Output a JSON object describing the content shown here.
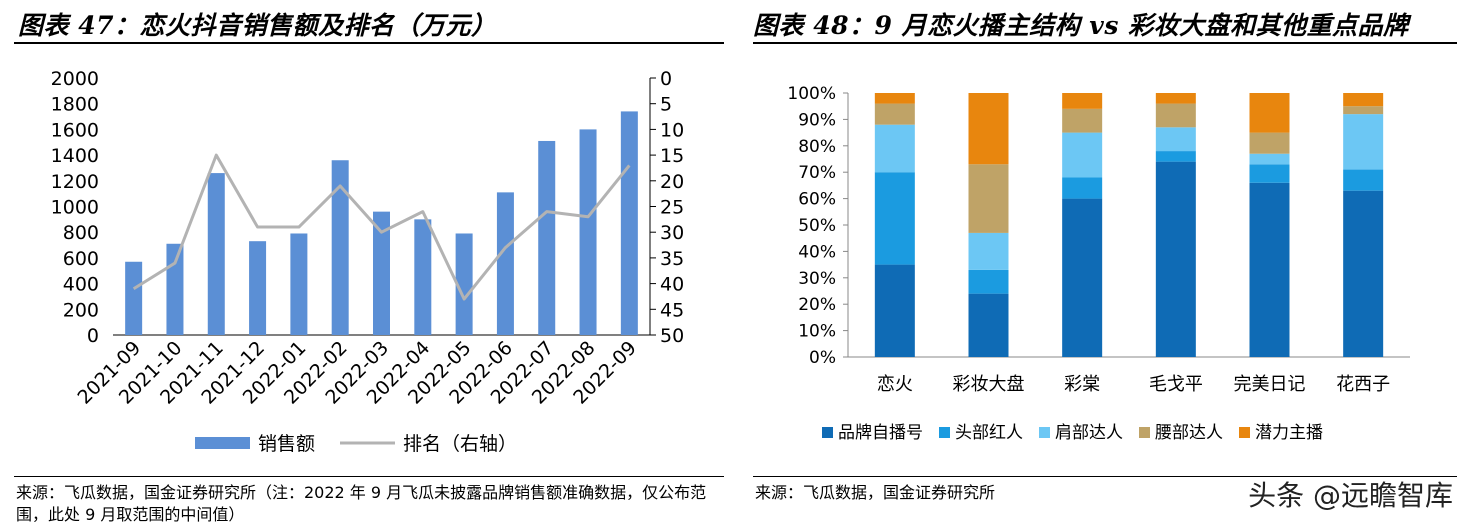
{
  "left": {
    "title": "图表 47：恋火抖音销售额及排名（万元）",
    "source": "来源：飞瓜数据，国金证券研究所（注：2022 年 9 月飞瓜未披露品牌销售额准确数据，仅公布范围，此处 9 月取范围的中间值）",
    "chart_data": {
      "type": "bar",
      "categories": [
        "2021-09",
        "2021-10",
        "2021-11",
        "2021-12",
        "2022-01",
        "2022-02",
        "2022-03",
        "2022-04",
        "2022-05",
        "2022-06",
        "2022-07",
        "2022-08",
        "2022-09"
      ],
      "series": [
        {
          "name": "销售额",
          "type": "bar",
          "axis": "left",
          "values": [
            570,
            710,
            1260,
            730,
            790,
            1360,
            960,
            900,
            790,
            1110,
            1510,
            1600,
            1740
          ]
        },
        {
          "name": "排名（右轴）",
          "type": "line",
          "axis": "right",
          "values": [
            41,
            36,
            15,
            29,
            29,
            21,
            30,
            26,
            43,
            33,
            26,
            27,
            17
          ]
        }
      ],
      "ylim": [
        0,
        2000
      ],
      "yticks": [
        0,
        200,
        400,
        600,
        800,
        1000,
        1200,
        1400,
        1600,
        1800,
        2000
      ],
      "y2lim": [
        0,
        50
      ],
      "y2_reversed": true,
      "y2ticks": [
        0,
        5,
        10,
        15,
        20,
        25,
        30,
        35,
        40,
        45,
        50
      ],
      "legend_position": "bottom",
      "colors": {
        "bar": "#5b8fd5",
        "line": "#b3b3b3"
      }
    }
  },
  "right": {
    "title": "图表 48：9 月恋火播主结构 vs 彩妆大盘和其他重点品牌",
    "source": "来源：飞瓜数据，国金证券研究所",
    "chart_data": {
      "type": "bar",
      "stacked": true,
      "categories": [
        "恋火",
        "彩妆大盘",
        "彩棠",
        "毛戈平",
        "完美日记",
        "花西子"
      ],
      "series": [
        {
          "name": "品牌自播号",
          "color": "#0f6bb5",
          "values": [
            35,
            24,
            60,
            74,
            66,
            63
          ]
        },
        {
          "name": "头部红人",
          "color": "#1b9be0",
          "values": [
            35,
            9,
            8,
            4,
            7,
            8
          ]
        },
        {
          "name": "肩部达人",
          "color": "#6cc7f4",
          "values": [
            18,
            14,
            17,
            9,
            4,
            21
          ]
        },
        {
          "name": "腰部达人",
          "color": "#bfa367",
          "values": [
            8,
            26,
            9,
            9,
            8,
            3
          ]
        },
        {
          "name": "潜力主播",
          "color": "#e8860e",
          "values": [
            4,
            27,
            6,
            4,
            15,
            5
          ]
        }
      ],
      "ylim": [
        0,
        100
      ],
      "yticks": [
        "0%",
        "10%",
        "20%",
        "30%",
        "40%",
        "50%",
        "60%",
        "70%",
        "80%",
        "90%",
        "100%"
      ],
      "legend_position": "bottom"
    }
  },
  "watermark": "头条 @远瞻智库"
}
